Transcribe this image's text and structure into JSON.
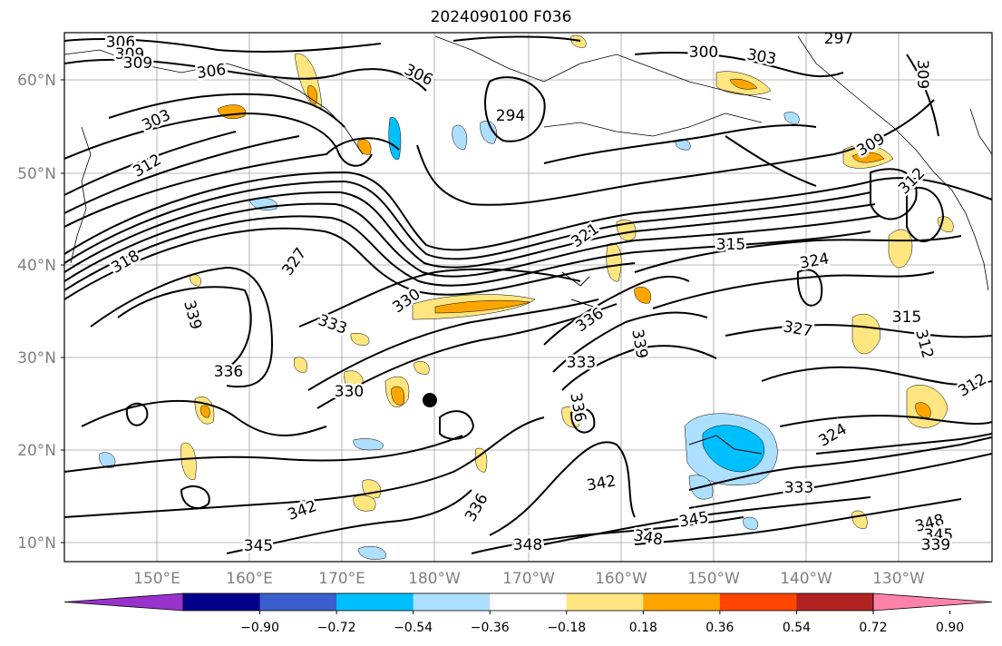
{
  "title": "2024090100 F036",
  "map": {
    "lat_labels": [
      "60°N",
      "50°N",
      "40°N",
      "30°N",
      "20°N",
      "10°N"
    ],
    "lon_labels": [
      "150°E",
      "160°E",
      "170°E",
      "180°W",
      "170°W",
      "160°W",
      "150°W",
      "140°W",
      "130°W"
    ],
    "contour_labels": [
      "306",
      "309",
      "309",
      "306",
      "306",
      "303",
      "312",
      "294",
      "300",
      "303",
      "297",
      "309",
      "309",
      "312",
      "321",
      "315",
      "324",
      "318",
      "327",
      "339",
      "336",
      "333",
      "330",
      "330",
      "336",
      "339",
      "333",
      "327",
      "315",
      "312",
      "312",
      "336",
      "336",
      "324",
      "342",
      "333",
      "342",
      "345",
      "345",
      "348",
      "348",
      "348",
      "345",
      "339"
    ],
    "marker": "storm-center-dot"
  },
  "colorbar": {
    "tick_labels": [
      "−0.90",
      "−0.72",
      "−0.54",
      "−0.36",
      "−0.18",
      "0.18",
      "0.36",
      "0.54",
      "0.72",
      "0.90"
    ],
    "colors": [
      "#9932CC",
      "#00008B",
      "#3A5FCD",
      "#00BFFF",
      "#ADDFFF",
      "#FFFFFF",
      "#FFE680",
      "#FFA500",
      "#FF4500",
      "#B22222",
      "#FF82AB"
    ]
  }
}
